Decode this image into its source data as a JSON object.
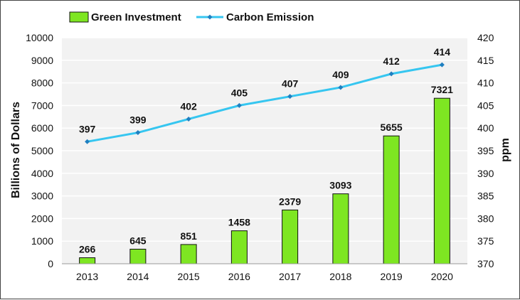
{
  "chart_data": {
    "type": "bar+line",
    "categories": [
      "2013",
      "2014",
      "2015",
      "2016",
      "2017",
      "2018",
      "2019",
      "2020"
    ],
    "series": [
      {
        "name": "Green Investment",
        "type": "bar",
        "axis": "left",
        "values": [
          266,
          645,
          851,
          1458,
          2379,
          3093,
          5655,
          7321
        ],
        "value_labels": [
          "266",
          "645",
          "851",
          "1458",
          "2379",
          "3093",
          "5655",
          "7321"
        ],
        "color": "#7ee622"
      },
      {
        "name": "Carbon Emission",
        "type": "line",
        "axis": "right",
        "values": [
          397,
          399,
          402,
          405,
          407,
          409,
          412,
          414
        ],
        "value_labels": [
          "397",
          "399",
          "402",
          "405",
          "407",
          "409",
          "412",
          "414"
        ],
        "color": "#36c6f0",
        "marker_color": "#1f7fc0"
      }
    ],
    "ylabel_left": "Billions of Dollars",
    "ylabel_right": "ppm",
    "ylim_left": [
      0,
      10000
    ],
    "ylim_right": [
      370,
      420
    ],
    "yticks_left": [
      "0",
      "1000",
      "2000",
      "3000",
      "4000",
      "5000",
      "6000",
      "7000",
      "8000",
      "9000",
      "10000"
    ],
    "yticks_right": [
      "370",
      "375",
      "380",
      "385",
      "390",
      "395",
      "400",
      "405",
      "410",
      "415",
      "420"
    ],
    "legend_position": "top-left",
    "grid": "horizontal",
    "plot_background": "#f2f2f2",
    "grid_color": "#ffffff"
  }
}
